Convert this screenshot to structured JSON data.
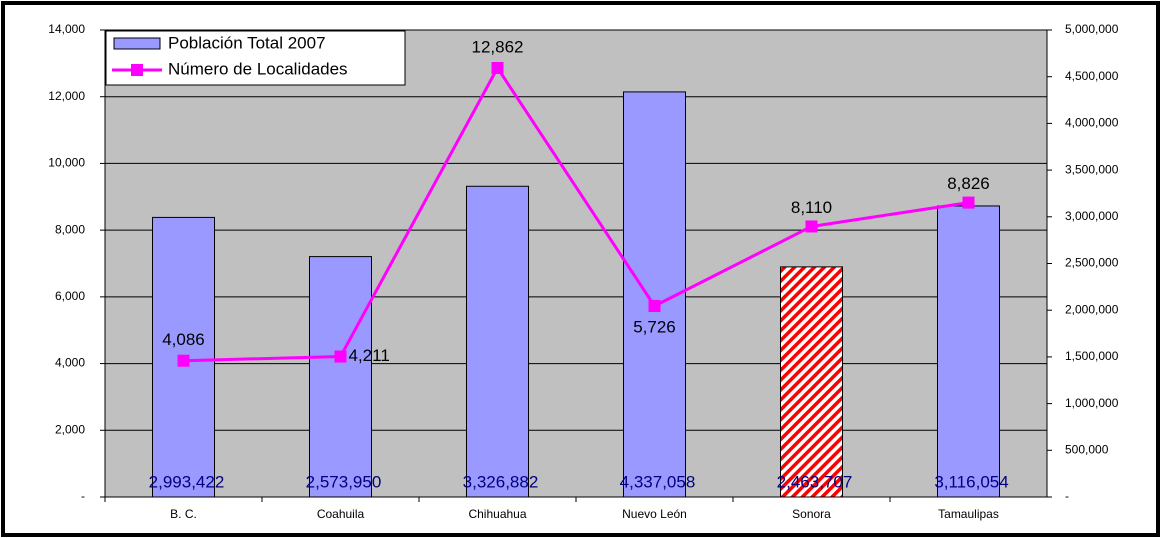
{
  "chart_data": {
    "type": "bar",
    "categories": [
      "B. C.",
      "Coahuila",
      "Chihuahua",
      "Nuevo León",
      "Sonora",
      "Tamaulipas"
    ],
    "series": [
      {
        "name": "Población Total 2007",
        "type": "bar",
        "axis": "y2",
        "color": "#9999ff",
        "values": [
          2993422,
          2573950,
          3326882,
          4337058,
          2463707,
          3116054
        ],
        "value_labels": [
          "2,993,422",
          "2,573,950",
          "3,326,882",
          "4,337,058",
          "2,463,707",
          "3,116,054"
        ],
        "hatched": [
          false,
          false,
          false,
          false,
          true,
          false
        ],
        "hatch_color": "#ff0000"
      },
      {
        "name": "Número de Localidades",
        "type": "line",
        "axis": "y",
        "color": "#ff00ff",
        "values": [
          4086,
          4211,
          12862,
          5726,
          8110,
          8826
        ],
        "value_labels": [
          "4,086",
          "4,211",
          "12,862",
          "5,726",
          "8,110",
          "8,826"
        ]
      }
    ],
    "ylim": [
      0,
      14000
    ],
    "yticks": [
      {
        "value": 0,
        "label": "-"
      },
      {
        "value": 2000,
        "label": "2,000"
      },
      {
        "value": 4000,
        "label": "4,000"
      },
      {
        "value": 6000,
        "label": "6,000"
      },
      {
        "value": 8000,
        "label": "8,000"
      },
      {
        "value": 10000,
        "label": "10,000"
      },
      {
        "value": 12000,
        "label": "12,000"
      },
      {
        "value": 14000,
        "label": "14,000"
      }
    ],
    "y2lim": [
      0,
      5000000
    ],
    "y2ticks": [
      {
        "value": 0,
        "label": "-"
      },
      {
        "value": 500000,
        "label": "500,000"
      },
      {
        "value": 1000000,
        "label": "1,000,000"
      },
      {
        "value": 1500000,
        "label": "1,500,000"
      },
      {
        "value": 2000000,
        "label": "2,000,000"
      },
      {
        "value": 2500000,
        "label": "2,500,000"
      },
      {
        "value": 3000000,
        "label": "3,000,000"
      },
      {
        "value": 3500000,
        "label": "3,500,000"
      },
      {
        "value": 4000000,
        "label": "4,000,000"
      },
      {
        "value": 4500000,
        "label": "4,500,000"
      },
      {
        "value": 5000000,
        "label": "5,000,000"
      }
    ],
    "grid": true,
    "legend": "top-left"
  }
}
